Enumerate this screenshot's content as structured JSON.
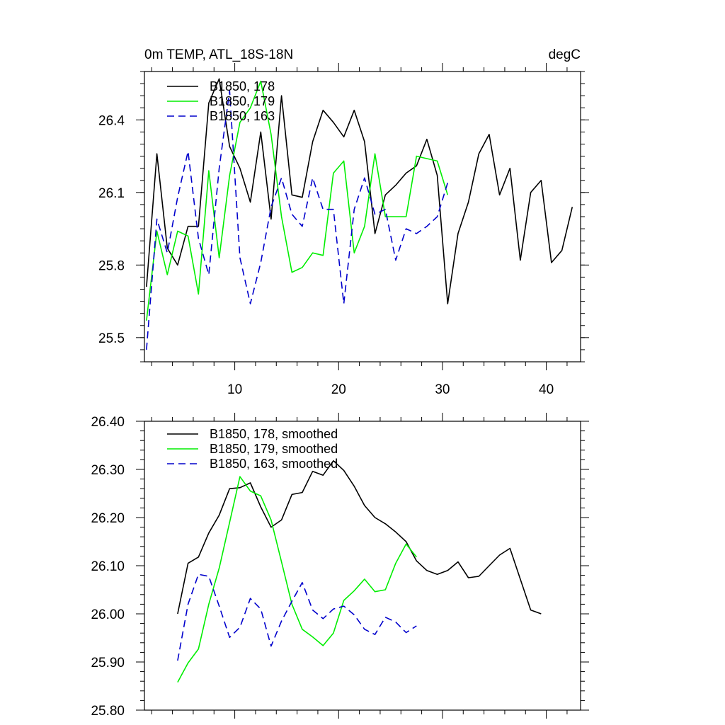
{
  "chart_data": [
    {
      "type": "line",
      "title_left": "0m TEMP, ATL_18S-18N",
      "title_right": "degC",
      "xlim": [
        1.3,
        43.3
      ],
      "ylim": [
        25.4,
        26.6
      ],
      "xticks": [
        10,
        20,
        30,
        40
      ],
      "xtick_labels": [
        "10",
        "20",
        "30",
        "40"
      ],
      "yticks": [
        25.5,
        25.8,
        26.1,
        26.4
      ],
      "ytick_labels": [
        "25.5",
        "25.8",
        "26.1",
        "26.4"
      ],
      "legend": "top-left",
      "series": [
        {
          "name": "B1850, 178",
          "color": "#000000",
          "dash": "solid",
          "x": [
            1.5,
            2.5,
            3.5,
            4.5,
            5.5,
            6.5,
            7.5,
            8.5,
            9.5,
            10.5,
            11.5,
            12.5,
            13.5,
            14.5,
            15.5,
            16.5,
            17.5,
            18.5,
            19.5,
            20.5,
            21.5,
            22.5,
            23.5,
            24.5,
            25.5,
            26.5,
            27.5,
            28.5,
            29.5,
            30.5,
            31.5,
            32.5,
            33.5,
            34.5,
            35.5,
            36.5,
            37.5,
            38.5,
            39.5,
            40.5,
            41.5,
            42.5
          ],
          "values": [
            25.71,
            26.26,
            25.87,
            25.8,
            25.96,
            25.96,
            26.47,
            26.57,
            26.29,
            26.2,
            26.06,
            26.35,
            25.99,
            26.5,
            26.09,
            26.08,
            26.31,
            26.44,
            26.39,
            26.33,
            26.44,
            26.31,
            25.93,
            26.09,
            26.13,
            26.18,
            26.21,
            26.32,
            26.17,
            25.64,
            25.93,
            26.06,
            26.26,
            26.34,
            26.09,
            26.2,
            25.82,
            26.1,
            26.15,
            25.81,
            25.86,
            26.04
          ]
        },
        {
          "name": "B1850, 179",
          "color": "#00ee00",
          "dash": "solid",
          "x": [
            1.5,
            2.5,
            3.5,
            4.5,
            5.5,
            6.5,
            7.5,
            8.5,
            9.5,
            10.5,
            11.5,
            12.5,
            13.5,
            14.5,
            15.5,
            16.5,
            17.5,
            18.5,
            19.5,
            20.5,
            21.5,
            22.5,
            23.5,
            24.5,
            25.5,
            26.5,
            27.5,
            28.5,
            29.5,
            30.5
          ],
          "values": [
            25.57,
            25.94,
            25.76,
            25.94,
            25.92,
            25.68,
            26.19,
            25.83,
            26.17,
            26.39,
            26.45,
            26.56,
            26.34,
            26.0,
            25.77,
            25.79,
            25.85,
            25.84,
            26.18,
            26.23,
            25.85,
            25.96,
            26.26,
            26.0,
            26.0,
            26.0,
            26.25,
            26.24,
            26.23,
            26.09
          ]
        },
        {
          "name": "B1850, 163",
          "color": "#0000cc",
          "dash": "dashed",
          "x": [
            1.5,
            2.5,
            3.5,
            4.5,
            5.5,
            6.5,
            7.5,
            8.5,
            9.5,
            10.5,
            11.5,
            12.5,
            13.5,
            14.5,
            15.5,
            16.5,
            17.5,
            18.5,
            19.5,
            20.5,
            21.5,
            22.5,
            23.5,
            24.5,
            25.5,
            26.5,
            27.5,
            28.5,
            29.5,
            30.5
          ],
          "values": [
            25.45,
            25.99,
            25.85,
            26.08,
            26.27,
            25.91,
            25.76,
            26.2,
            26.52,
            25.83,
            25.64,
            25.81,
            26.04,
            26.16,
            26.01,
            25.96,
            26.16,
            26.03,
            26.03,
            25.64,
            26.03,
            26.16,
            26.01,
            26.03,
            25.82,
            25.95,
            25.93,
            25.96,
            26.0,
            26.14
          ]
        }
      ]
    },
    {
      "type": "line",
      "xlim": [
        1.3,
        43.3
      ],
      "ylim": [
        25.8,
        26.4
      ],
      "xticks": [
        10,
        20,
        30,
        40
      ],
      "yticks": [
        25.8,
        25.9,
        26.0,
        26.1,
        26.2,
        26.3,
        26.4
      ],
      "ytick_labels": [
        "25.80",
        "25.90",
        "26.00",
        "26.10",
        "26.20",
        "26.30",
        "26.40"
      ],
      "legend": "top-left",
      "series": [
        {
          "name": "B1850, 178, smoothed",
          "color": "#000000",
          "dash": "solid",
          "x": [
            4.5,
            5.5,
            6.5,
            7.5,
            8.5,
            9.5,
            10.5,
            11.5,
            12.5,
            13.5,
            14.5,
            15.5,
            16.5,
            17.5,
            18.5,
            19.5,
            20.5,
            21.5,
            22.5,
            23.5,
            24.5,
            25.5,
            26.5,
            27.5,
            28.5,
            29.5,
            30.5,
            31.5,
            32.5,
            33.5,
            34.5,
            35.5,
            36.5,
            37.5,
            38.5,
            39.5
          ],
          "values": [
            26.0,
            26.105,
            26.118,
            26.168,
            26.205,
            26.26,
            26.262,
            26.272,
            26.222,
            26.18,
            26.195,
            26.248,
            26.252,
            26.296,
            26.288,
            26.318,
            26.298,
            26.265,
            26.225,
            26.2,
            26.187,
            26.17,
            26.15,
            26.11,
            26.09,
            26.082,
            26.09,
            26.108,
            26.075,
            26.078,
            26.1,
            26.122,
            26.136,
            26.072,
            26.008,
            26.0
          ]
        },
        {
          "name": "B1850, 179, smoothed",
          "color": "#00ee00",
          "dash": "solid",
          "x": [
            4.5,
            5.5,
            6.5,
            7.5,
            8.5,
            9.5,
            10.5,
            11.5,
            12.5,
            13.5,
            14.5,
            15.5,
            16.5,
            17.5,
            18.5,
            19.5,
            20.5,
            21.5,
            22.5,
            23.5,
            24.5,
            25.5,
            26.5,
            27.5
          ],
          "values": [
            25.858,
            25.898,
            25.927,
            26.02,
            26.095,
            26.19,
            26.285,
            26.255,
            26.245,
            26.195,
            26.108,
            26.02,
            25.968,
            25.952,
            25.934,
            25.96,
            26.028,
            26.048,
            26.072,
            26.046,
            26.05,
            26.105,
            26.145,
            26.118
          ]
        },
        {
          "name": "B1850, 163, smoothed",
          "color": "#0000cc",
          "dash": "dashed",
          "x": [
            4.5,
            5.5,
            6.5,
            7.5,
            8.5,
            9.5,
            10.5,
            11.5,
            12.5,
            13.5,
            14.5,
            15.5,
            16.5,
            17.5,
            18.5,
            19.5,
            20.5,
            21.5,
            22.5,
            23.5,
            24.5,
            25.5,
            26.5,
            27.5
          ],
          "values": [
            25.903,
            26.02,
            26.082,
            26.078,
            26.016,
            25.951,
            25.972,
            26.032,
            26.01,
            25.933,
            25.985,
            26.026,
            26.065,
            26.008,
            25.99,
            26.01,
            26.016,
            25.998,
            25.968,
            25.957,
            25.993,
            25.983,
            25.961,
            25.975
          ]
        }
      ]
    }
  ]
}
